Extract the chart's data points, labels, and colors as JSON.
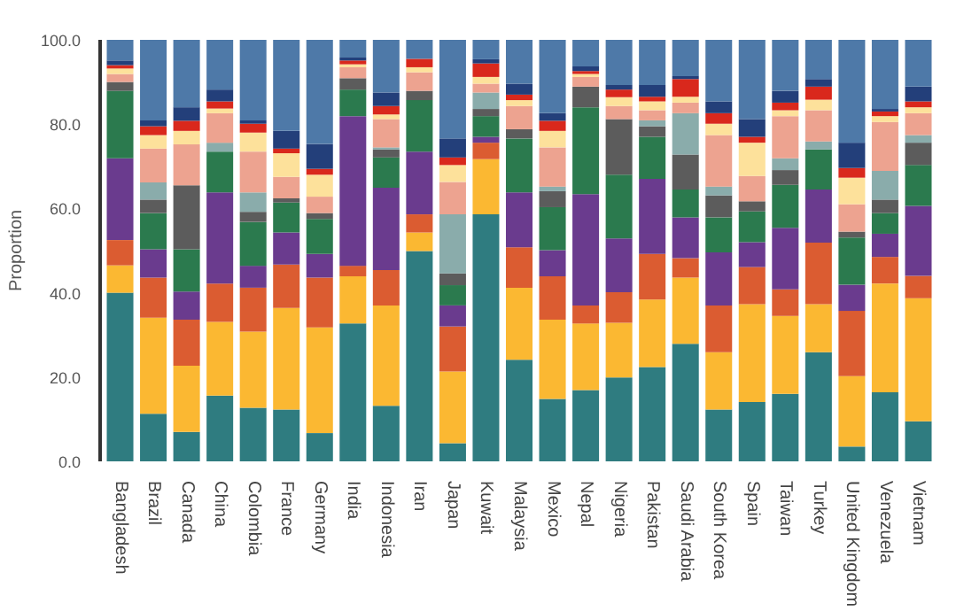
{
  "chart_data": {
    "type": "bar",
    "stacked": true,
    "ylabel": "Proportion",
    "categories": [
      "Bangladesh",
      "Brazil",
      "Canada",
      "China",
      "Colombia",
      "France",
      "Germany",
      "India",
      "Indonesia",
      "Iran",
      "Japan",
      "Kuwait",
      "Malaysia",
      "Mexico",
      "Nepal",
      "Nigeria",
      "Pakistan",
      "Saudi Arabia",
      "South Korea",
      "Spain",
      "Taiwan",
      "Turkey",
      "United Kingdom",
      "Venezuela",
      "Vietnam"
    ],
    "ylim": [
      0,
      100
    ],
    "yticks": [
      {
        "value": 0,
        "label": "0.0"
      },
      {
        "value": 20,
        "label": "20.0"
      },
      {
        "value": 40,
        "label": "40.0"
      },
      {
        "value": 60,
        "label": "60.0"
      },
      {
        "value": 80,
        "label": "80.0"
      },
      {
        "value": 100,
        "label": "100.0"
      }
    ],
    "series": [
      {
        "color": "#2f7c80",
        "values": [
          40,
          11.3,
          7.0,
          15.6,
          12.7,
          12.3,
          6.7,
          32.7,
          13.2,
          49.9,
          4.3,
          58.6,
          24.1,
          14.8,
          16.9,
          19.9,
          22.4,
          27.9,
          12.3,
          14.1,
          16.0,
          25.9,
          3.5,
          16.4,
          9.5
        ]
      },
      {
        "color": "#fbb832",
        "values": [
          6.5,
          22.8,
          15.7,
          17.5,
          18.1,
          24.1,
          25.1,
          11.2,
          23.8,
          4.4,
          17.0,
          13.1,
          17.1,
          18.8,
          15.8,
          13.0,
          16.0,
          15.7,
          13.6,
          23.2,
          18.5,
          11.4,
          16.7,
          25.8,
          29.2
        ]
      },
      {
        "color": "#db5c31",
        "values": [
          6.0,
          9.5,
          10.9,
          9.1,
          10.4,
          10.3,
          11.8,
          2.5,
          8.4,
          4.3,
          10.7,
          3.9,
          9.6,
          10.3,
          4.3,
          7.2,
          10.8,
          4.6,
          11.1,
          8.8,
          6.3,
          14.6,
          15.5,
          6.3,
          5.3
        ]
      },
      {
        "color": "#6a3b8e",
        "values": [
          19.4,
          6.7,
          6.7,
          21.6,
          5.2,
          7.6,
          5.6,
          35.5,
          19.5,
          14.9,
          5.0,
          1.4,
          13.0,
          6.2,
          26.4,
          12.8,
          17.8,
          9.7,
          12.6,
          5.9,
          14.6,
          12.6,
          6.2,
          5.5,
          16.6
        ]
      },
      {
        "color": "#2b7a4e",
        "values": [
          16.0,
          8.6,
          10.0,
          9.7,
          10.4,
          7.1,
          8.3,
          6.3,
          7.2,
          12.2,
          4.8,
          4.9,
          12.8,
          10.2,
          20.6,
          15.1,
          10.0,
          6.6,
          8.3,
          7.3,
          10.2,
          9.5,
          11.2,
          4.9,
          9.7
        ]
      },
      {
        "color": "#5c5c5c",
        "values": [
          2.1,
          3.2,
          15.2,
          0,
          2.4,
          1.0,
          1.4,
          2.7,
          1.9,
          2.2,
          2.8,
          1.7,
          2.2,
          3.8,
          4.9,
          13.2,
          2.5,
          8.3,
          5.2,
          2.4,
          3.5,
          0,
          1.4,
          3.2,
          5.3
        ]
      },
      {
        "color": "#8aacab",
        "values": [
          0,
          4.1,
          0,
          2.1,
          4.6,
          0,
          0,
          0,
          0.5,
          0,
          14.0,
          3.9,
          0,
          1.1,
          0,
          0,
          1.4,
          9.8,
          2.1,
          0,
          2.8,
          1.9,
          0,
          6.8,
          1.8
        ]
      },
      {
        "color": "#eda390",
        "values": [
          1.9,
          8.0,
          9.7,
          7.0,
          9.7,
          5.1,
          3.9,
          2.6,
          6.7,
          4.4,
          7.7,
          2.1,
          5.5,
          9.3,
          2.3,
          3.1,
          2.4,
          2.5,
          12.2,
          6.0,
          10.0,
          7.4,
          6.5,
          11.6,
          5.2
        ]
      },
      {
        "color": "#fde19b",
        "values": [
          1.3,
          3.2,
          3.2,
          1.1,
          4.5,
          5.6,
          5.2,
          0.7,
          1.1,
          1.2,
          4.0,
          1.6,
          1.4,
          3.9,
          0.7,
          2.1,
          2.1,
          1.4,
          2.7,
          7.9,
          1.4,
          2.5,
          6.3,
          1.4,
          1.4
        ]
      },
      {
        "color": "#d9281c",
        "values": [
          0.8,
          2.1,
          2.4,
          1.7,
          2.1,
          1.1,
          1.4,
          0.9,
          2.0,
          2.0,
          1.8,
          3.2,
          1.3,
          2.4,
          0.7,
          1.8,
          1.1,
          4.2,
          2.5,
          1.4,
          1.8,
          3.1,
          2.3,
          1.1,
          1.4
        ]
      },
      {
        "color": "#233f7a",
        "values": [
          1.1,
          1.4,
          3.2,
          2.8,
          0.8,
          4.2,
          5.9,
          0.7,
          3.2,
          0,
          4.5,
          1.0,
          2.6,
          1.8,
          1.1,
          1.1,
          2.8,
          0.7,
          2.8,
          4.2,
          2.8,
          1.8,
          6.0,
          0.6,
          3.5
        ]
      },
      {
        "color": "#4e79a8",
        "values": [
          4.9,
          19.1,
          16.0,
          11.8,
          19.1,
          21.6,
          24.7,
          4.2,
          12.5,
          4.5,
          23.4,
          4.6,
          10.4,
          17.4,
          6.3,
          10.7,
          10.7,
          8.6,
          14.6,
          18.8,
          12.1,
          9.3,
          24.4,
          16.4,
          11.1
        ]
      }
    ]
  }
}
